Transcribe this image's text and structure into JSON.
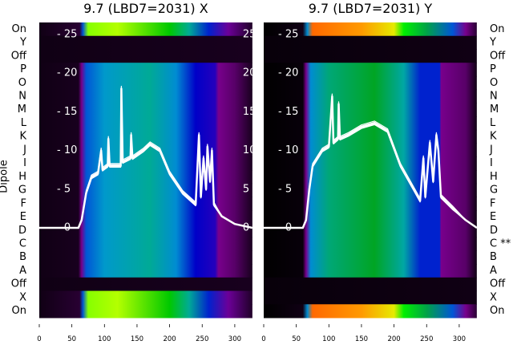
{
  "chart_data": {
    "type": "heatmap",
    "ylabel": "Dipole",
    "row_labels": [
      "On",
      "Y",
      "Off",
      "P",
      "O",
      "N",
      "M",
      "L",
      "K",
      "J",
      "I",
      "H",
      "G",
      "F",
      "E",
      "D",
      "C",
      "B",
      "A",
      "Off",
      "X",
      "On"
    ],
    "x_ticks": [
      0,
      50,
      100,
      150,
      200,
      250,
      300
    ],
    "x_range": [
      0,
      327
    ],
    "overlay_y_ticks": [
      0,
      5,
      10,
      15,
      20,
      25
    ],
    "overlay_y_tick_labels_left": [
      "- 0",
      "- 5",
      "- 10",
      "- 15",
      "- 20",
      "- 25"
    ],
    "overlay_y_range": [
      0,
      25
    ],
    "panels": [
      {
        "title": "9.7 (LBD7=2031) X",
        "right_labels": [
          "On",
          "Y",
          "Off",
          "P",
          "O",
          "N",
          "M",
          "L",
          "K",
          "J",
          "I",
          "H",
          "G",
          "F",
          "E",
          "D",
          "C",
          "B",
          "A",
          "Off",
          "X",
          "On"
        ],
        "row_profiles": {
          "dipole": [
            [
              0,
              0.02
            ],
            [
              60,
              0.03
            ],
            [
              65,
              0.1
            ],
            [
              72,
              0.25
            ],
            [
              100,
              0.32
            ],
            [
              170,
              0.4
            ],
            [
              210,
              0.3
            ],
            [
              240,
              0.2
            ],
            [
              270,
              0.18
            ],
            [
              275,
              0.1
            ],
            [
              300,
              0.08
            ],
            [
              327,
              0.03
            ]
          ],
          "on": [
            [
              0,
              0.02
            ],
            [
              62,
              0.05
            ],
            [
              67,
              0.25
            ],
            [
              75,
              0.68
            ],
            [
              120,
              0.7
            ],
            [
              200,
              0.55
            ],
            [
              230,
              0.4
            ],
            [
              260,
              0.22
            ],
            [
              290,
              0.12
            ],
            [
              327,
              0.04
            ]
          ],
          "off": [
            [
              0,
              0.02
            ],
            [
              327,
              0.03
            ]
          ]
        },
        "row_kinds": [
          "on",
          "off",
          "off",
          "dipole",
          "dipole",
          "dipole",
          "dipole",
          "dipole",
          "dipole",
          "dipole",
          "dipole",
          "dipole",
          "dipole",
          "dipole",
          "dipole",
          "dipole",
          "dipole",
          "dipole",
          "dipole",
          "off",
          "on",
          "on"
        ],
        "overlay": [
          [
            0,
            0
          ],
          [
            60,
            0
          ],
          [
            65,
            1
          ],
          [
            72,
            4.5
          ],
          [
            80,
            6.5
          ],
          [
            90,
            7
          ],
          [
            95,
            10
          ],
          [
            97,
            7.5
          ],
          [
            105,
            8
          ],
          [
            106,
            11.5
          ],
          [
            108,
            8
          ],
          [
            125,
            8
          ],
          [
            126,
            18
          ],
          [
            128,
            8.5
          ],
          [
            140,
            9
          ],
          [
            141,
            12
          ],
          [
            143,
            9
          ],
          [
            160,
            10
          ],
          [
            170,
            10.8
          ],
          [
            185,
            10
          ],
          [
            200,
            7
          ],
          [
            220,
            4.5
          ],
          [
            240,
            3
          ],
          [
            245,
            12
          ],
          [
            248,
            4
          ],
          [
            252,
            9
          ],
          [
            256,
            5
          ],
          [
            258,
            10.5
          ],
          [
            262,
            6
          ],
          [
            265,
            10
          ],
          [
            268,
            3
          ],
          [
            280,
            1.5
          ],
          [
            300,
            0.5
          ],
          [
            327,
            0
          ]
        ]
      },
      {
        "title": "9.7 (LBD7=2031) Y",
        "right_labels": [
          "On",
          "Y",
          "Off",
          "P",
          "O",
          "N",
          "M",
          "L",
          "K",
          "J",
          "I",
          "H",
          "G",
          "F",
          "E",
          "D",
          "C **",
          "B",
          "A",
          "Off",
          "X",
          "On"
        ],
        "row_profiles": {
          "dipole": [
            [
              0,
              0
            ],
            [
              60,
              0.01
            ],
            [
              65,
              0.1
            ],
            [
              72,
              0.3
            ],
            [
              100,
              0.42
            ],
            [
              170,
              0.48
            ],
            [
              215,
              0.38
            ],
            [
              240,
              0.22
            ],
            [
              270,
              0.22
            ],
            [
              272,
              0.1
            ],
            [
              310,
              0.08
            ],
            [
              327,
              0.02
            ]
          ],
          "on": [
            [
              0,
              0
            ],
            [
              60,
              0.02
            ],
            [
              67,
              0.3
            ],
            [
              75,
              0.86
            ],
            [
              150,
              0.83
            ],
            [
              200,
              0.75
            ],
            [
              215,
              0.6
            ],
            [
              250,
              0.45
            ],
            [
              290,
              0.25
            ],
            [
              310,
              0.1
            ],
            [
              327,
              0.05
            ]
          ],
          "off": [
            [
              0,
              0.01
            ],
            [
              327,
              0.02
            ]
          ]
        },
        "row_kinds": [
          "on",
          "off",
          "off",
          "dipole",
          "dipole",
          "dipole",
          "dipole",
          "dipole",
          "dipole",
          "dipole",
          "dipole",
          "dipole",
          "dipole",
          "dipole",
          "dipole",
          "dipole",
          "dipole",
          "dipole",
          "dipole",
          "off",
          "off",
          "on"
        ],
        "overlay": [
          [
            0,
            0
          ],
          [
            60,
            0
          ],
          [
            65,
            1
          ],
          [
            70,
            5
          ],
          [
            75,
            8
          ],
          [
            90,
            10
          ],
          [
            100,
            10.5
          ],
          [
            105,
            17
          ],
          [
            107,
            11
          ],
          [
            114,
            11.5
          ],
          [
            115,
            16
          ],
          [
            117,
            11.5
          ],
          [
            130,
            12
          ],
          [
            150,
            13
          ],
          [
            170,
            13.5
          ],
          [
            190,
            12.5
          ],
          [
            210,
            8
          ],
          [
            230,
            5
          ],
          [
            240,
            3.5
          ],
          [
            245,
            9
          ],
          [
            248,
            4
          ],
          [
            255,
            11
          ],
          [
            260,
            6
          ],
          [
            265,
            12
          ],
          [
            268,
            10
          ],
          [
            272,
            4
          ],
          [
            290,
            2.5
          ],
          [
            310,
            1
          ],
          [
            327,
            0
          ]
        ]
      }
    ]
  }
}
